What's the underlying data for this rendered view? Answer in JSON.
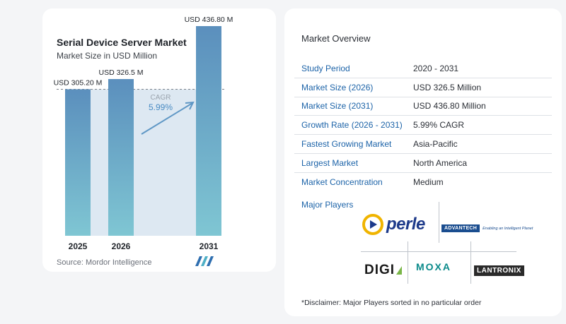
{
  "chart_data": {
    "type": "bar",
    "title": "Serial Device Server Market",
    "subtitle": "Market Size in USD Million",
    "categories": [
      "2025",
      "2026",
      "2031"
    ],
    "values": [
      305.2,
      326.5,
      436.8
    ],
    "data_labels": [
      "USD 305.20 M",
      "USD 326.5 M",
      "USD 436.80 M"
    ],
    "cagr_label": "CAGR",
    "cagr_value": "5.99%",
    "ylim": [
      0,
      450
    ],
    "grid": false,
    "colors": {
      "bar_top": "#5b8fbd",
      "bar_bottom": "#7fc6d3",
      "highlight": "#dde8f2",
      "arrow": "#5f97c5"
    }
  },
  "source": "Source: Mordor Intelligence",
  "overview": {
    "title": "Market Overview",
    "rows": [
      {
        "label": "Study Period",
        "value": "2020 - 2031"
      },
      {
        "label": "Market Size (2026)",
        "value": "USD 326.5 Million"
      },
      {
        "label": "Market Size (2031)",
        "value": "USD 436.80 Million"
      },
      {
        "label": "Growth Rate (2026 - 2031)",
        "value": "5.99% CAGR"
      },
      {
        "label": "Fastest Growing Market",
        "value": "Asia-Pacific"
      },
      {
        "label": "Largest Market",
        "value": "North America"
      },
      {
        "label": "Market Concentration",
        "value": "Medium"
      }
    ],
    "players_label": "Major Players",
    "players": {
      "perle": "perle",
      "advantech": "ADVANTECH",
      "advantech_tag": "Enabling an Intelligent Planet",
      "digi": "DIGI",
      "moxa": "MOXA",
      "lantronix": "LANTRONIX"
    },
    "disclaimer": "*Disclaimer: Major Players sorted in no particular order"
  }
}
